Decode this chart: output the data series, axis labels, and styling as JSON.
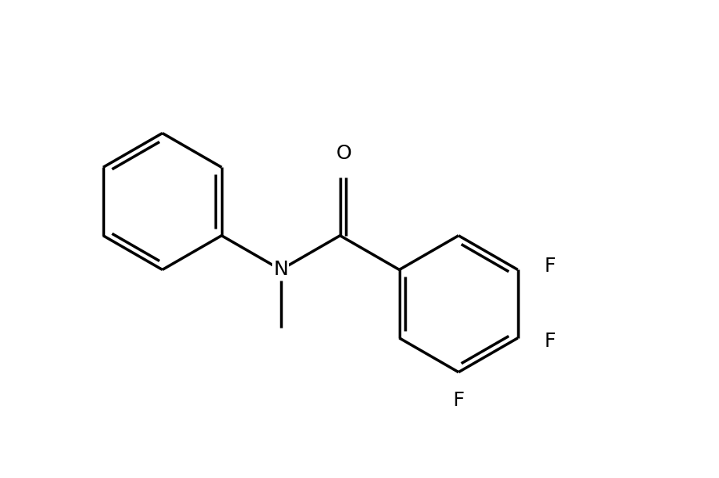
{
  "background_color": "#ffffff",
  "line_color": "#000000",
  "line_width": 2.5,
  "font_size": 18,
  "figsize": [
    8.98,
    5.98
  ],
  "dpi": 100,
  "xlim": [
    0,
    10
  ],
  "ylim": [
    0,
    7
  ]
}
